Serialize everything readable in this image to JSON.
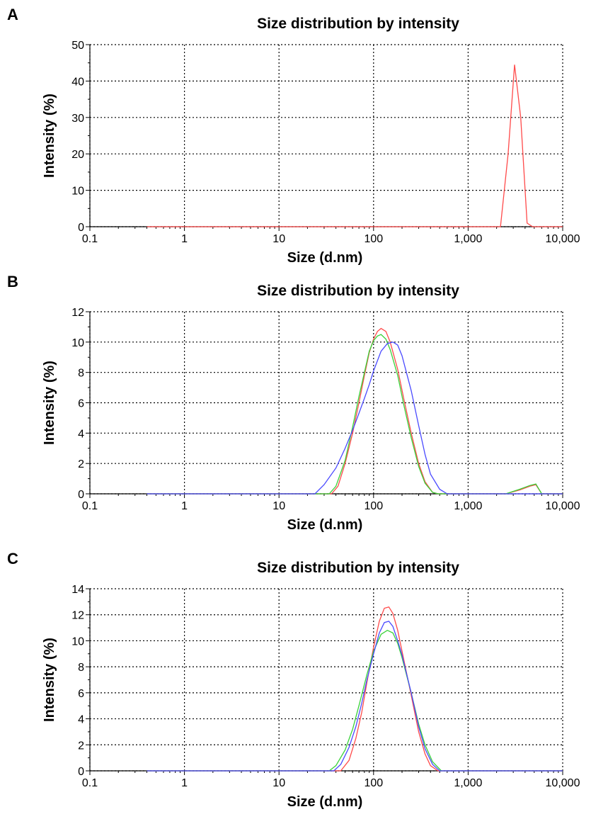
{
  "panels": [
    {
      "letter": "A"
    },
    {
      "letter": "B"
    },
    {
      "letter": "C"
    }
  ],
  "colors": {
    "red": "#ff4a4a",
    "green": "#39d239",
    "blue": "#4a4aff",
    "grid": "#000000"
  },
  "chart_data": [
    {
      "type": "line",
      "title": "Size distribution by intensity",
      "xlabel": "Size (d.nm)",
      "ylabel": "Intensity (%)",
      "xscale": "log",
      "xlim": [
        0.1,
        10000
      ],
      "ylim": [
        0,
        50
      ],
      "xticks": [
        0.1,
        1,
        10,
        100,
        1000,
        10000
      ],
      "xtick_labels": [
        "0.1",
        "1",
        "10",
        "100",
        "1,000",
        "10,000"
      ],
      "yticks": [
        0,
        10,
        20,
        30,
        40,
        50
      ],
      "grid": true,
      "series": [
        {
          "color": "#ff4a4a",
          "x": [
            0.4,
            2200,
            2650,
            3100,
            3600,
            4200,
            4800,
            10000
          ],
          "y": [
            0,
            0,
            20,
            44.5,
            30,
            1,
            0,
            0
          ]
        }
      ]
    },
    {
      "type": "line",
      "title": "Size distribution by intensity",
      "xlabel": "Size (d.nm)",
      "ylabel": "Intensity (%)",
      "xscale": "log",
      "xlim": [
        0.1,
        10000
      ],
      "ylim": [
        0,
        12
      ],
      "xticks": [
        0.1,
        1,
        10,
        100,
        1000,
        10000
      ],
      "xtick_labels": [
        "0.1",
        "1",
        "10",
        "100",
        "1,000",
        "10,000"
      ],
      "yticks": [
        0,
        2,
        4,
        6,
        8,
        10,
        12
      ],
      "grid": true,
      "series": [
        {
          "color": "#ff4a4a",
          "x": [
            0.4,
            36,
            42,
            50,
            60,
            70,
            80,
            90,
            100,
            110,
            120,
            135,
            150,
            180,
            210,
            250,
            300,
            350,
            420,
            480,
            2500,
            3500,
            4500,
            5200,
            6000,
            10000
          ],
          "y": [
            0,
            0,
            0.5,
            2,
            4,
            6,
            7.8,
            9.3,
            10.2,
            10.7,
            10.9,
            10.7,
            10,
            8.2,
            6.2,
            4,
            2,
            0.8,
            0.1,
            0,
            0,
            0.25,
            0.5,
            0.6,
            0,
            0
          ]
        },
        {
          "color": "#39d239",
          "x": [
            0.4,
            34,
            40,
            50,
            60,
            70,
            80,
            90,
            100,
            110,
            120,
            135,
            150,
            180,
            210,
            250,
            300,
            350,
            420,
            480,
            2500,
            3500,
            4500,
            5200,
            6000,
            10000
          ],
          "y": [
            0,
            0,
            0.5,
            2.2,
            4.4,
            6.4,
            8,
            9.4,
            10.1,
            10.4,
            10.5,
            10.2,
            9.5,
            7.8,
            5.8,
            3.7,
            1.8,
            0.7,
            0.1,
            0,
            0,
            0.3,
            0.55,
            0.65,
            0,
            0
          ]
        },
        {
          "color": "#4a4aff",
          "x": [
            0.4,
            24,
            30,
            40,
            50,
            60,
            70,
            80,
            90,
            100,
            120,
            140,
            160,
            180,
            200,
            250,
            300,
            350,
            400,
            500,
            600,
            10000
          ],
          "y": [
            0,
            0,
            0.6,
            1.7,
            3,
            4.2,
            5.3,
            6.3,
            7.2,
            8.1,
            9.4,
            9.9,
            10,
            9.8,
            9.1,
            6.8,
            4.5,
            2.6,
            1.3,
            0.3,
            0,
            0
          ]
        }
      ]
    },
    {
      "type": "line",
      "title": "Size distribution by intensity",
      "xlabel": "Size (d.nm)",
      "ylabel": "Intensity (%)",
      "xscale": "log",
      "xlim": [
        0.1,
        10000
      ],
      "ylim": [
        0,
        14
      ],
      "xticks": [
        0.1,
        1,
        10,
        100,
        1000,
        10000
      ],
      "xtick_labels": [
        "0.1",
        "1",
        "10",
        "100",
        "1,000",
        "10,000"
      ],
      "yticks": [
        0,
        2,
        4,
        6,
        8,
        10,
        12,
        14
      ],
      "grid": true,
      "series": [
        {
          "color": "#ff4a4a",
          "x": [
            0.4,
            45,
            55,
            65,
            75,
            85,
            100,
            115,
            130,
            145,
            160,
            180,
            200,
            250,
            300,
            350,
            400,
            480,
            10000
          ],
          "y": [
            0,
            0,
            0.8,
            2.5,
            4.5,
            6.8,
            9.5,
            11.5,
            12.5,
            12.6,
            12.1,
            10.8,
            9.2,
            5.8,
            3,
            1.3,
            0.4,
            0,
            0
          ]
        },
        {
          "color": "#39d239",
          "x": [
            0.4,
            34,
            40,
            50,
            60,
            70,
            85,
            100,
            120,
            140,
            160,
            180,
            200,
            250,
            300,
            350,
            420,
            520,
            10000
          ],
          "y": [
            0,
            0,
            0.4,
            1.6,
            3.2,
            5,
            7.4,
            9.2,
            10.5,
            10.8,
            10.6,
            9.8,
            8.7,
            6,
            3.6,
            2,
            0.7,
            0,
            0
          ]
        },
        {
          "color": "#4a4aff",
          "x": [
            0.4,
            38,
            45,
            55,
            65,
            75,
            85,
            100,
            115,
            130,
            145,
            160,
            180,
            200,
            250,
            300,
            350,
            420,
            500,
            10000
          ],
          "y": [
            0,
            0,
            0.5,
            1.8,
            3.4,
            5.2,
            7,
            9,
            10.6,
            11.4,
            11.5,
            11.1,
            10,
            8.9,
            6,
            3.4,
            1.7,
            0.5,
            0,
            0
          ]
        }
      ]
    }
  ]
}
